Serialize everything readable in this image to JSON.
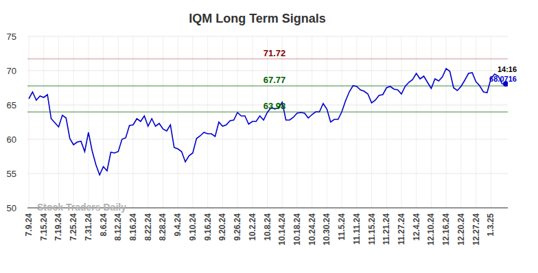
{
  "chart_data": {
    "type": "line",
    "title": "IQM Long Term Signals",
    "categories": [
      "7.9.24",
      null,
      null,
      null,
      "7.15.24",
      null,
      null,
      null,
      "7.19.24",
      null,
      null,
      null,
      "7.25.24",
      null,
      null,
      null,
      "7.31.24",
      null,
      null,
      null,
      "8.6.24",
      null,
      null,
      null,
      "8.12.24",
      null,
      null,
      null,
      "8.16.24",
      null,
      null,
      null,
      "8.22.24",
      null,
      null,
      null,
      "8.28.24",
      null,
      null,
      null,
      "9.4.24",
      null,
      null,
      null,
      "9.10.24",
      null,
      null,
      null,
      "9.16.24",
      null,
      null,
      null,
      "9.20.24",
      null,
      null,
      null,
      "9.26.24",
      null,
      null,
      null,
      "10.2.24",
      null,
      null,
      null,
      "10.8.24",
      null,
      null,
      null,
      "10.14.24",
      null,
      null,
      null,
      "10.18.24",
      null,
      null,
      null,
      "10.24.24",
      null,
      null,
      null,
      "10.30.24",
      null,
      null,
      null,
      "11.5.24",
      null,
      null,
      null,
      "11.11.24",
      null,
      null,
      null,
      "11.15.24",
      null,
      null,
      null,
      "11.21.24",
      null,
      null,
      null,
      "11.27.24",
      null,
      null,
      null,
      "12.4.24",
      null,
      null,
      null,
      "12.10.24",
      null,
      null,
      null,
      "12.16.24",
      null,
      null,
      null,
      "12.20.24",
      null,
      null,
      null,
      "12.27.24",
      null,
      null,
      null,
      "1.3.25",
      null,
      null,
      null,
      null
    ],
    "values": [
      65.9,
      66.9,
      65.7,
      66.3,
      66.1,
      66.5,
      63.0,
      62.4,
      61.8,
      63.5,
      63.1,
      60.1,
      59.2,
      59.6,
      59.7,
      58.2,
      61.0,
      58.3,
      56.3,
      54.8,
      56.0,
      55.4,
      58.1,
      58.0,
      58.2,
      60.0,
      60.2,
      62.0,
      62.1,
      63.0,
      62.6,
      63.4,
      61.9,
      63.0,
      61.9,
      62.3,
      61.5,
      61.2,
      62.1,
      58.8,
      58.6,
      58.2,
      56.7,
      57.6,
      58.0,
      60.1,
      60.5,
      61.0,
      60.8,
      60.8,
      60.4,
      62.5,
      61.9,
      62.1,
      62.7,
      62.8,
      63.9,
      63.4,
      63.4,
      62.2,
      62.6,
      62.6,
      63.4,
      62.8,
      63.9,
      64.6,
      64.4,
      64.6,
      65.4,
      62.8,
      62.8,
      63.2,
      63.8,
      63.9,
      63.8,
      63.1,
      63.6,
      64.0,
      64.0,
      65.2,
      64.4,
      62.5,
      62.9,
      62.9,
      64.0,
      65.6,
      66.9,
      67.8,
      67.7,
      67.2,
      67.0,
      66.6,
      65.3,
      65.7,
      66.4,
      66.5,
      67.5,
      67.7,
      67.3,
      67.2,
      66.6,
      67.7,
      68.3,
      68.7,
      69.6,
      68.8,
      69.2,
      68.3,
      67.4,
      68.8,
      68.5,
      69.1,
      70.3,
      69.9,
      67.5,
      67.1,
      67.7,
      68.6,
      69.6,
      69.7,
      68.4,
      67.8,
      66.9,
      66.8,
      68.8,
      69.5,
      69.2,
      68.1,
      68.0716
    ],
    "color": "#0000cc",
    "ylim": [
      50,
      75
    ],
    "yticks": [
      50,
      55,
      60,
      65,
      70,
      75
    ],
    "grid": true,
    "hlines": [
      {
        "value": 71.72,
        "color": "#8b0000"
      },
      {
        "value": 67.77,
        "color": "#006400"
      },
      {
        "value": 63.98,
        "color": "#006400"
      }
    ],
    "annotations": [
      {
        "text": "14:16"
      }
    ],
    "watermark": "Stock Traders Daily"
  }
}
